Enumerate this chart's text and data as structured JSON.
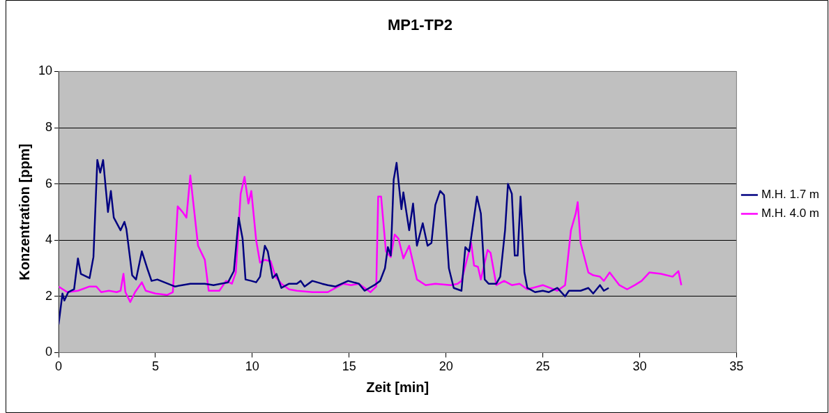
{
  "chart_data": {
    "type": "line",
    "title": "MP1-TP2",
    "xlabel": "Zeit [min]",
    "ylabel": "Konzentration [ppm]",
    "xlim": [
      0,
      35
    ],
    "xticks": [
      0,
      5,
      10,
      15,
      20,
      25,
      30,
      35
    ],
    "ylim": [
      0,
      10
    ],
    "yticks": [
      0,
      2,
      4,
      6,
      8,
      10
    ],
    "grid": "y",
    "legend": "right",
    "marker": "none",
    "line_style": "solid",
    "series": [
      {
        "name": "M.H. 1.7 m",
        "color": "#000080",
        "x": [
          0,
          0.2,
          0.3,
          0.5,
          0.65,
          0.8,
          1.0,
          1.15,
          1.6,
          1.8,
          2.0,
          2.15,
          2.3,
          2.55,
          2.7,
          2.85,
          3.2,
          3.4,
          3.5,
          3.8,
          4.0,
          4.3,
          4.6,
          4.8,
          5.1,
          6.0,
          6.8,
          7.55,
          8,
          8.75,
          9.05,
          9.3,
          9.5,
          9.65,
          9.95,
          10.2,
          10.4,
          10.65,
          10.8,
          11.05,
          11.25,
          11.5,
          11.9,
          12.3,
          12.5,
          12.7,
          13.1,
          13.6,
          13.9,
          14.3,
          14.95,
          15.5,
          15.8,
          16.3,
          16.6,
          16.85,
          17,
          17.15,
          17.3,
          17.45,
          17.7,
          17.8,
          18.1,
          18.3,
          18.5,
          18.8,
          19.05,
          19.25,
          19.45,
          19.7,
          19.9,
          20.15,
          20.4,
          20.8,
          21.0,
          21.2,
          21.6,
          21.8,
          22.0,
          22.2,
          22.6,
          22.8,
          23.05,
          23.2,
          23.4,
          23.55,
          23.7,
          23.85,
          24.05,
          24.2,
          24.6,
          25.0,
          25.3,
          25.75,
          26.15,
          26.35,
          26.95,
          27.35,
          27.6,
          27.95,
          28.15,
          28.4
        ],
        "values": [
          1.0,
          2.1,
          1.85,
          2.15,
          2.2,
          2.25,
          3.35,
          2.8,
          2.65,
          3.4,
          6.85,
          6.4,
          6.85,
          5.0,
          5.75,
          4.8,
          4.35,
          4.65,
          4.4,
          2.75,
          2.6,
          3.6,
          2.95,
          2.55,
          2.6,
          2.35,
          2.45,
          2.45,
          2.4,
          2.5,
          2.9,
          4.8,
          4.05,
          2.6,
          2.55,
          2.5,
          2.7,
          3.8,
          3.6,
          2.65,
          2.8,
          2.3,
          2.45,
          2.45,
          2.55,
          2.35,
          2.55,
          2.45,
          2.4,
          2.35,
          2.55,
          2.45,
          2.2,
          2.4,
          2.55,
          3.0,
          3.75,
          3.45,
          6.15,
          6.75,
          5.1,
          5.7,
          4.35,
          5.3,
          3.8,
          4.6,
          3.8,
          3.9,
          5.25,
          5.75,
          5.6,
          3.0,
          2.3,
          2.2,
          3.75,
          3.6,
          5.55,
          4.95,
          2.6,
          2.45,
          2.45,
          2.7,
          4.35,
          6.0,
          5.65,
          3.45,
          3.45,
          5.55,
          2.85,
          2.3,
          2.15,
          2.2,
          2.15,
          2.3,
          2.0,
          2.2,
          2.2,
          2.3,
          2.1,
          2.4,
          2.2,
          2.3
        ]
      },
      {
        "name": "M.H. 4.0 m",
        "color": "#ff00ff",
        "x": [
          0,
          0.45,
          1.0,
          1.6,
          1.95,
          2.2,
          2.6,
          3.0,
          3.2,
          3.35,
          3.45,
          3.7,
          3.95,
          4.3,
          4.5,
          5.0,
          5.6,
          5.9,
          6.15,
          6.4,
          6.6,
          6.8,
          7.2,
          7.55,
          7.75,
          8.3,
          8.65,
          8.95,
          9.15,
          9.4,
          9.6,
          9.8,
          9.95,
          10.2,
          10.4,
          10.65,
          10.95,
          11.2,
          11.5,
          11.9,
          12.3,
          13.1,
          13.9,
          14.3,
          14.7,
          15.1,
          15.5,
          16.1,
          16.4,
          16.5,
          16.65,
          16.9,
          17.15,
          17.35,
          17.55,
          17.8,
          18.1,
          18.5,
          18.95,
          19.45,
          20.25,
          20.6,
          20.8,
          21.3,
          21.45,
          21.65,
          21.8,
          22.15,
          22.3,
          22.6,
          23.0,
          23.4,
          23.8,
          24.2,
          25.0,
          25.75,
          26.15,
          26.45,
          26.7,
          26.8,
          26.95,
          27.35,
          27.6,
          27.95,
          28.15,
          28.45,
          28.95,
          29.35,
          29.75,
          30.1,
          30.5,
          31.1,
          31.7,
          32.0,
          32.15
        ],
        "values": [
          2.35,
          2.15,
          2.2,
          2.35,
          2.35,
          2.15,
          2.2,
          2.15,
          2.2,
          2.8,
          2.15,
          1.8,
          2.15,
          2.5,
          2.2,
          2.1,
          2.05,
          2.15,
          5.2,
          5.0,
          4.8,
          6.3,
          3.8,
          3.3,
          2.2,
          2.2,
          2.55,
          2.45,
          2.85,
          5.65,
          6.25,
          5.3,
          5.75,
          4.0,
          3.2,
          3.3,
          3.25,
          2.7,
          2.45,
          2.25,
          2.2,
          2.15,
          2.15,
          2.3,
          2.45,
          2.4,
          2.45,
          2.15,
          2.35,
          5.55,
          5.55,
          3.6,
          3.4,
          4.2,
          4.05,
          3.35,
          3.8,
          2.6,
          2.4,
          2.45,
          2.4,
          2.45,
          2.55,
          3.9,
          3.1,
          3.05,
          2.6,
          3.65,
          3.55,
          2.4,
          2.55,
          2.4,
          2.45,
          2.25,
          2.4,
          2.2,
          2.4,
          4.35,
          4.95,
          5.35,
          3.9,
          2.85,
          2.75,
          2.7,
          2.55,
          2.85,
          2.4,
          2.25,
          2.4,
          2.55,
          2.85,
          2.8,
          2.7,
          2.9,
          2.4
        ]
      }
    ]
  }
}
